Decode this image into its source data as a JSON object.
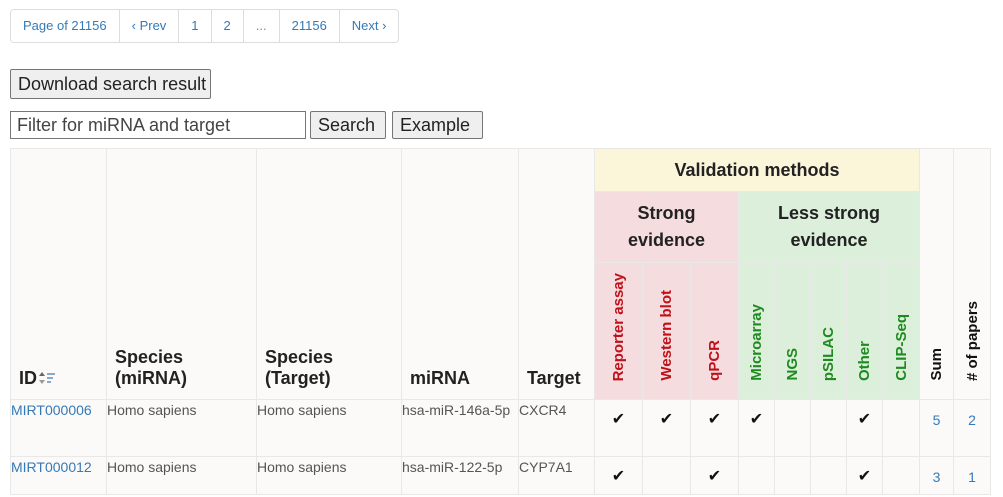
{
  "pagination": {
    "page_of": "Page of 21156",
    "prev": "‹ Prev",
    "p1": "1",
    "p2": "2",
    "ellipsis": "...",
    "last": "21156",
    "next": "Next ›"
  },
  "download_button": "Download search result",
  "filter": {
    "placeholder": "Filter for miRNA and target",
    "value": ""
  },
  "search_button": "Search",
  "example_button": "Example",
  "table": {
    "headers": {
      "id": "ID",
      "species_mirna_1": "Species",
      "species_mirna_2": "(miRNA)",
      "species_target_1": "Species",
      "species_target_2": "(Target)",
      "mirna": "miRNA",
      "target": "Target",
      "validation_methods": "Validation methods",
      "strong_1": "Strong",
      "strong_2": "evidence",
      "weak_1": "Less strong",
      "weak_2": "evidence",
      "reporter": "Reporter assay",
      "western": "Western blot",
      "qpcr": "qPCR",
      "microarray": "Microarray",
      "ngs": "NGS",
      "psilac": "pSILAC",
      "other": "Other",
      "clipseq": "CLIP-Seq",
      "sum": "Sum",
      "papers": "# of papers"
    },
    "rows": [
      {
        "id": "MIRT000006",
        "species_mirna": "Homo sapiens",
        "species_target": "Homo sapiens",
        "mirna": "hsa-miR-146a-5p",
        "target": "CXCR4",
        "reporter": "✔",
        "western": "✔",
        "qpcr": "✔",
        "microarray": "✔",
        "ngs": "",
        "psilac": "",
        "other": "✔",
        "clipseq": "",
        "sum": "5",
        "papers": "2"
      },
      {
        "id": "MIRT000012",
        "species_mirna": "Homo sapiens",
        "species_target": "Homo sapiens",
        "mirna": "hsa-miR-122-5p",
        "target": "CYP7A1",
        "reporter": "✔",
        "western": "",
        "qpcr": "✔",
        "microarray": "",
        "ngs": "",
        "psilac": "",
        "other": "✔",
        "clipseq": "",
        "sum": "3",
        "papers": "1"
      }
    ]
  }
}
